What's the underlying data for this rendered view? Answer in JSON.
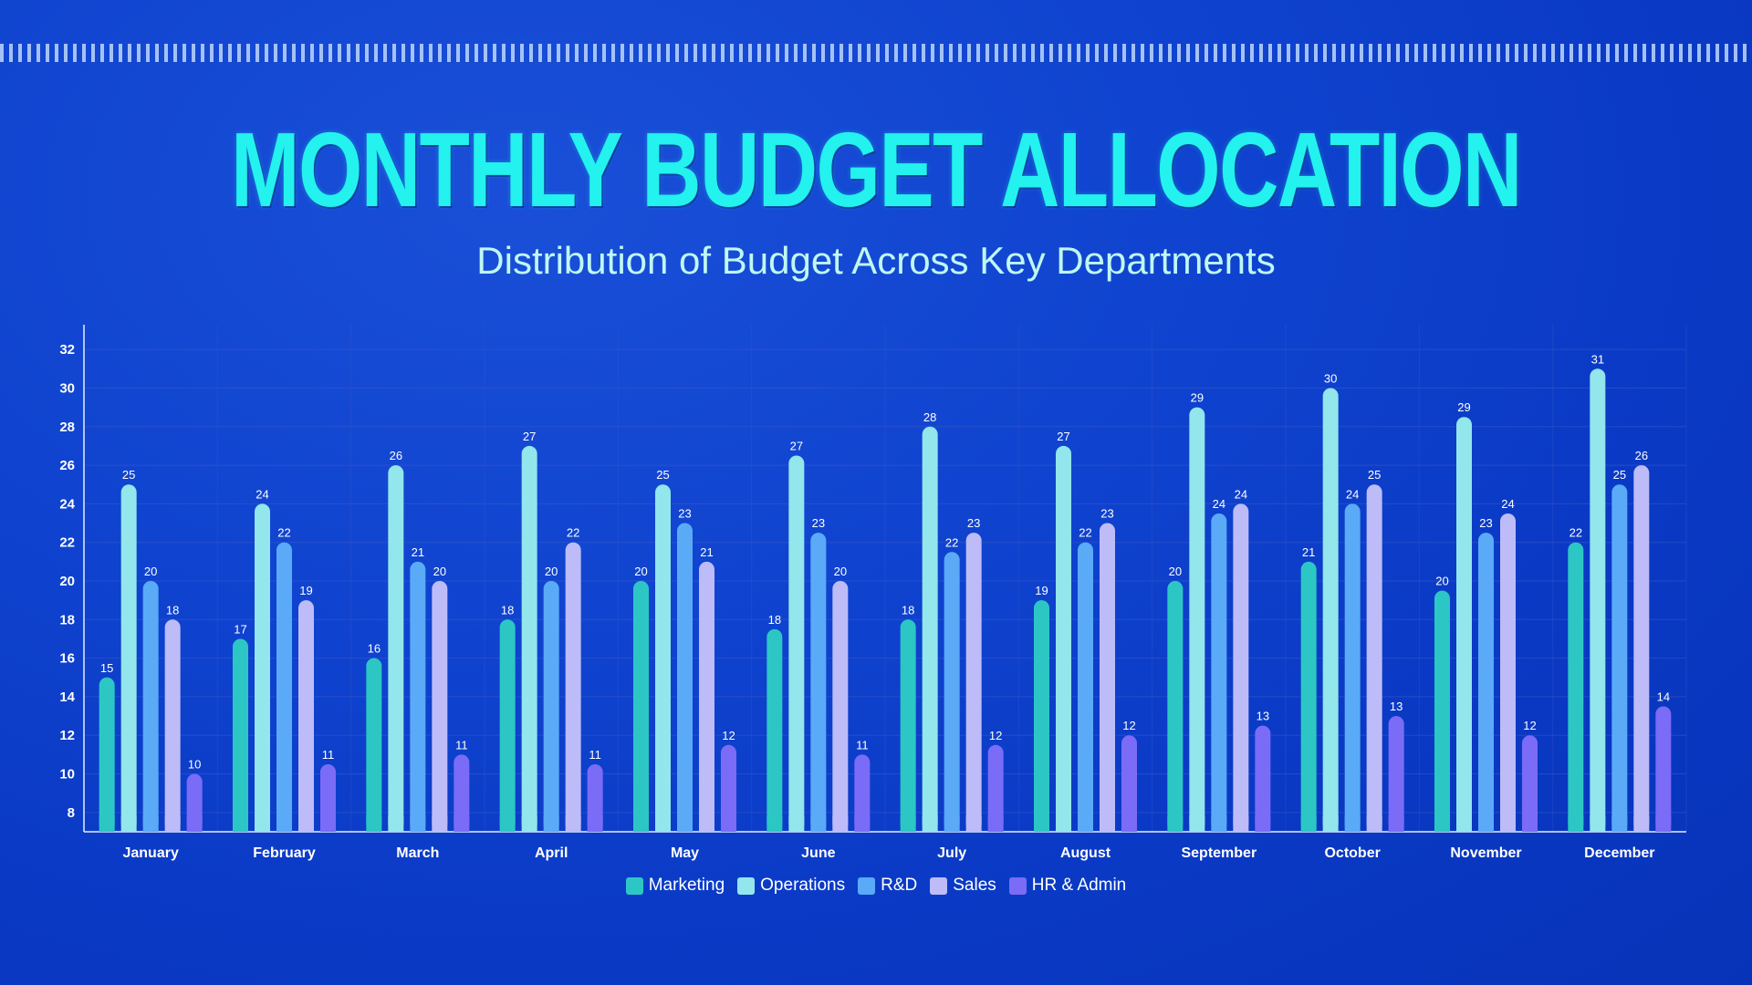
{
  "header": {
    "title": "MONTHLY BUDGET ALLOCATION",
    "subtitle": "Distribution of Budget Across Key Departments"
  },
  "colors": {
    "Marketing": "#2cc7c4",
    "Operations": "#92e6ec",
    "R&D": "#5aaaf8",
    "Sales": "#bdbcf8",
    "HR & Admin": "#7a6cf6",
    "title": "#23f2ee"
  },
  "chart_data": {
    "type": "bar",
    "title": "MONTHLY BUDGET ALLOCATION",
    "subtitle": "Distribution of Budget Across Key Departments",
    "xlabel": "",
    "ylabel": "",
    "ylim": [
      7,
      33
    ],
    "yticks": [
      8,
      10,
      12,
      14,
      16,
      18,
      20,
      22,
      24,
      26,
      28,
      30,
      32
    ],
    "grid": true,
    "legend_position": "bottom-center",
    "categories": [
      "January",
      "February",
      "March",
      "April",
      "May",
      "June",
      "July",
      "August",
      "September",
      "October",
      "November",
      "December"
    ],
    "series": [
      {
        "name": "Marketing",
        "values": [
          15,
          17,
          16,
          18,
          20,
          17.5,
          18,
          19,
          20,
          21,
          19.5,
          22
        ],
        "labels": [
          "15",
          "17",
          "16",
          "18",
          "20",
          "18",
          "18",
          "19",
          "20",
          "21",
          "20",
          "22"
        ]
      },
      {
        "name": "Operations",
        "values": [
          25,
          24,
          26,
          27,
          25,
          26.5,
          28,
          27,
          29,
          30,
          28.5,
          31
        ],
        "labels": [
          "25",
          "24",
          "26",
          "27",
          "25",
          "27",
          "28",
          "27",
          "29",
          "30",
          "29",
          "31"
        ]
      },
      {
        "name": "R&D",
        "values": [
          20,
          22,
          21,
          20,
          23,
          22.5,
          21.5,
          22,
          23.5,
          24,
          22.5,
          25
        ],
        "labels": [
          "20",
          "22",
          "21",
          "20",
          "23",
          "23",
          "22",
          "22",
          "24",
          "24",
          "23",
          "25"
        ]
      },
      {
        "name": "Sales",
        "values": [
          18,
          19,
          20,
          22,
          21,
          20,
          22.5,
          23,
          24,
          25,
          23.5,
          26
        ],
        "labels": [
          "18",
          "19",
          "20",
          "22",
          "21",
          "20",
          "23",
          "23",
          "24",
          "25",
          "24",
          "26"
        ]
      },
      {
        "name": "HR & Admin",
        "values": [
          10,
          10.5,
          11,
          10.5,
          11.5,
          11,
          11.5,
          12,
          12.5,
          13,
          12,
          13.5
        ],
        "labels": [
          "10",
          "11",
          "11",
          "11",
          "12",
          "11",
          "12",
          "12",
          "13",
          "13",
          "12",
          "14"
        ]
      }
    ]
  }
}
